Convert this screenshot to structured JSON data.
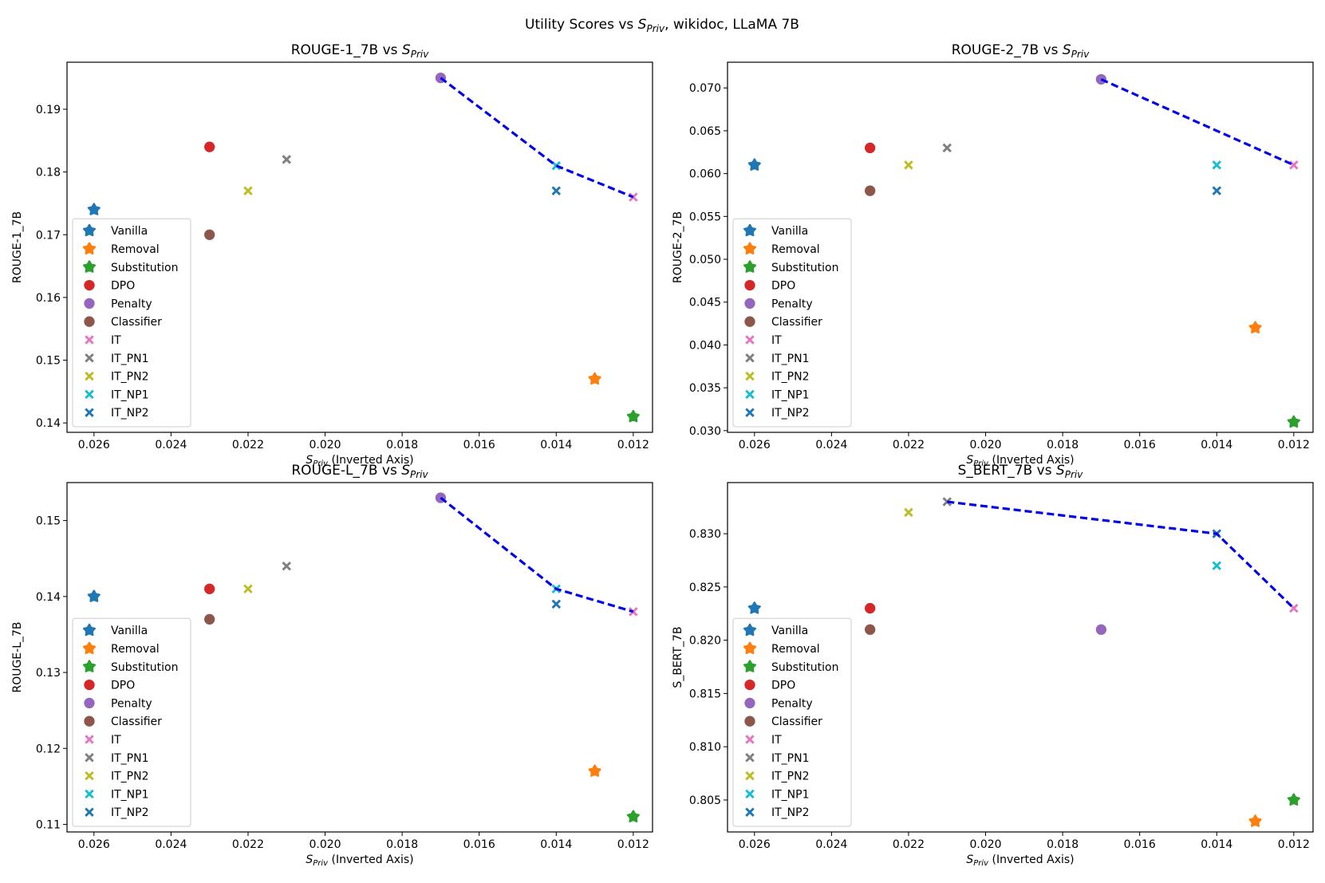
{
  "figure": {
    "suptitle_prefix": "Utility Scores vs ",
    "suptitle_symbol": "S",
    "suptitle_subscript": "Priv",
    "suptitle_suffix": ", wikidoc, LLaMA 7B"
  },
  "legend_entries": [
    {
      "name": "Vanilla",
      "marker": "star-icon",
      "color": "#1f77b4"
    },
    {
      "name": "Removal",
      "marker": "star-icon",
      "color": "#ff7f0e"
    },
    {
      "name": "Substitution",
      "marker": "star-icon",
      "color": "#2ca02c"
    },
    {
      "name": "DPO",
      "marker": "circle-icon",
      "color": "#d62728"
    },
    {
      "name": "Penalty",
      "marker": "circle-icon",
      "color": "#9467bd"
    },
    {
      "name": "Classifier",
      "marker": "circle-icon",
      "color": "#8c564b"
    },
    {
      "name": "IT",
      "marker": "cross-icon",
      "color": "#e377c2"
    },
    {
      "name": "IT_PN1",
      "marker": "cross-icon",
      "color": "#7f7f7f"
    },
    {
      "name": "IT_PN2",
      "marker": "cross-icon",
      "color": "#bcbd22"
    },
    {
      "name": "IT_NP1",
      "marker": "cross-icon",
      "color": "#17becf"
    },
    {
      "name": "IT_NP2",
      "marker": "cross-icon",
      "color": "#1f77b4"
    }
  ],
  "chart_data": [
    {
      "type": "scatter",
      "title_prefix": "ROUGE-1_7B vs ",
      "title_symbol": "S",
      "title_subscript": "Priv",
      "xlabel_symbol": "S",
      "xlabel_subscript": "Priv",
      "xlabel_suffix": " (Inverted Axis)",
      "ylabel": "ROUGE-1_7B",
      "xlim": [
        0.0267,
        0.0115
      ],
      "ylim": [
        0.1385,
        0.1975
      ],
      "x_ticks": [
        "0.026",
        "0.024",
        "0.022",
        "0.020",
        "0.018",
        "0.016",
        "0.014",
        "0.012"
      ],
      "y_ticks": [
        "0.14",
        "0.15",
        "0.16",
        "0.17",
        "0.18",
        "0.19"
      ],
      "legend_position": "center-left",
      "points": [
        {
          "name": "Vanilla",
          "x": 0.026,
          "y": 0.174
        },
        {
          "name": "Removal",
          "x": 0.013,
          "y": 0.147
        },
        {
          "name": "Substitution",
          "x": 0.012,
          "y": 0.141
        },
        {
          "name": "DPO",
          "x": 0.023,
          "y": 0.184
        },
        {
          "name": "Penalty",
          "x": 0.017,
          "y": 0.195
        },
        {
          "name": "Classifier",
          "x": 0.023,
          "y": 0.17
        },
        {
          "name": "IT",
          "x": 0.012,
          "y": 0.176
        },
        {
          "name": "IT_PN1",
          "x": 0.021,
          "y": 0.182
        },
        {
          "name": "IT_PN2",
          "x": 0.022,
          "y": 0.177
        },
        {
          "name": "IT_NP1",
          "x": 0.014,
          "y": 0.181
        },
        {
          "name": "IT_NP2",
          "x": 0.014,
          "y": 0.177
        }
      ],
      "frontier": [
        [
          0.017,
          0.195
        ],
        [
          0.014,
          0.181
        ],
        [
          0.012,
          0.176
        ]
      ]
    },
    {
      "type": "scatter",
      "title_prefix": "ROUGE-2_7B vs ",
      "title_symbol": "S",
      "title_subscript": "Priv",
      "xlabel_symbol": "S",
      "xlabel_subscript": "Priv",
      "xlabel_suffix": " (Inverted Axis)",
      "ylabel": "ROUGE-2_7B",
      "xlim": [
        0.0267,
        0.0115
      ],
      "ylim": [
        0.0298,
        0.073
      ],
      "x_ticks": [
        "0.026",
        "0.024",
        "0.022",
        "0.020",
        "0.018",
        "0.016",
        "0.014",
        "0.012"
      ],
      "y_ticks": [
        "0.030",
        "0.035",
        "0.040",
        "0.045",
        "0.050",
        "0.055",
        "0.060",
        "0.065",
        "0.070"
      ],
      "legend_position": "center-left",
      "points": [
        {
          "name": "Vanilla",
          "x": 0.026,
          "y": 0.061
        },
        {
          "name": "Removal",
          "x": 0.013,
          "y": 0.042
        },
        {
          "name": "Substitution",
          "x": 0.012,
          "y": 0.031
        },
        {
          "name": "DPO",
          "x": 0.023,
          "y": 0.063
        },
        {
          "name": "Penalty",
          "x": 0.017,
          "y": 0.071
        },
        {
          "name": "Classifier",
          "x": 0.023,
          "y": 0.058
        },
        {
          "name": "IT",
          "x": 0.012,
          "y": 0.061
        },
        {
          "name": "IT_PN1",
          "x": 0.021,
          "y": 0.063
        },
        {
          "name": "IT_PN2",
          "x": 0.022,
          "y": 0.061
        },
        {
          "name": "IT_NP1",
          "x": 0.014,
          "y": 0.061
        },
        {
          "name": "IT_NP2",
          "x": 0.014,
          "y": 0.058
        }
      ],
      "frontier": [
        [
          0.017,
          0.071
        ],
        [
          0.012,
          0.061
        ]
      ]
    },
    {
      "type": "scatter",
      "title_prefix": "ROUGE-L_7B vs ",
      "title_symbol": "S",
      "title_subscript": "Priv",
      "xlabel_symbol": "S",
      "xlabel_subscript": "Priv",
      "xlabel_suffix": " (Inverted Axis)",
      "ylabel": "ROUGE-L_7B",
      "xlim": [
        0.0267,
        0.0115
      ],
      "ylim": [
        0.109,
        0.155
      ],
      "x_ticks": [
        "0.026",
        "0.024",
        "0.022",
        "0.020",
        "0.018",
        "0.016",
        "0.014",
        "0.012"
      ],
      "y_ticks": [
        "0.11",
        "0.12",
        "0.13",
        "0.14",
        "0.15"
      ],
      "legend_position": "center-left",
      "points": [
        {
          "name": "Vanilla",
          "x": 0.026,
          "y": 0.14
        },
        {
          "name": "Removal",
          "x": 0.013,
          "y": 0.117
        },
        {
          "name": "Substitution",
          "x": 0.012,
          "y": 0.111
        },
        {
          "name": "DPO",
          "x": 0.023,
          "y": 0.141
        },
        {
          "name": "Penalty",
          "x": 0.017,
          "y": 0.153
        },
        {
          "name": "Classifier",
          "x": 0.023,
          "y": 0.137
        },
        {
          "name": "IT",
          "x": 0.012,
          "y": 0.138
        },
        {
          "name": "IT_PN1",
          "x": 0.021,
          "y": 0.144
        },
        {
          "name": "IT_PN2",
          "x": 0.022,
          "y": 0.141
        },
        {
          "name": "IT_NP1",
          "x": 0.014,
          "y": 0.141
        },
        {
          "name": "IT_NP2",
          "x": 0.014,
          "y": 0.139
        }
      ],
      "frontier": [
        [
          0.017,
          0.153
        ],
        [
          0.014,
          0.141
        ],
        [
          0.012,
          0.138
        ]
      ]
    },
    {
      "type": "scatter",
      "title_prefix": "S_BERT_7B vs ",
      "title_symbol": "S",
      "title_subscript": "Priv",
      "xlabel_symbol": "S",
      "xlabel_subscript": "Priv",
      "xlabel_suffix": " (Inverted Axis)",
      "ylabel": "S_BERT_7B",
      "xlim": [
        0.0267,
        0.0115
      ],
      "ylim": [
        0.802,
        0.8348
      ],
      "x_ticks": [
        "0.026",
        "0.024",
        "0.022",
        "0.020",
        "0.018",
        "0.016",
        "0.014",
        "0.012"
      ],
      "y_ticks": [
        "0.805",
        "0.810",
        "0.815",
        "0.820",
        "0.825",
        "0.830"
      ],
      "legend_position": "center-left",
      "points": [
        {
          "name": "Vanilla",
          "x": 0.026,
          "y": 0.823
        },
        {
          "name": "Removal",
          "x": 0.013,
          "y": 0.803
        },
        {
          "name": "Substitution",
          "x": 0.012,
          "y": 0.805
        },
        {
          "name": "DPO",
          "x": 0.023,
          "y": 0.823
        },
        {
          "name": "Penalty",
          "x": 0.017,
          "y": 0.821
        },
        {
          "name": "Classifier",
          "x": 0.023,
          "y": 0.821
        },
        {
          "name": "IT",
          "x": 0.012,
          "y": 0.823
        },
        {
          "name": "IT_PN1",
          "x": 0.021,
          "y": 0.833
        },
        {
          "name": "IT_PN2",
          "x": 0.022,
          "y": 0.832
        },
        {
          "name": "IT_NP1",
          "x": 0.014,
          "y": 0.827
        },
        {
          "name": "IT_NP2",
          "x": 0.014,
          "y": 0.83
        }
      ],
      "frontier": [
        [
          0.021,
          0.833
        ],
        [
          0.014,
          0.83
        ],
        [
          0.012,
          0.823
        ]
      ]
    }
  ]
}
